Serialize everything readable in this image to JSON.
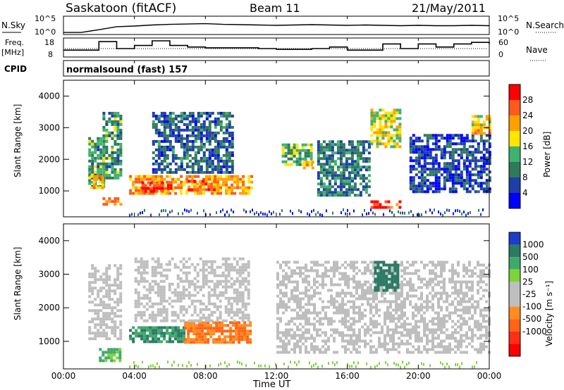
{
  "header": {
    "station": "Saskatoon (fitACF)",
    "beam": "Beam 11",
    "date": "21/May/2011"
  },
  "noise_panel": {
    "left_label": "N.Sky",
    "left_ticks": [
      "10^5",
      "10^0"
    ],
    "right_label": "N.Search",
    "right_ticks": [
      "10^5",
      "10^0"
    ]
  },
  "freq_panel": {
    "left_label_line1": "Freq.",
    "left_label_line2": "[MHz]",
    "left_ticks": [
      "18",
      "8"
    ],
    "right_label": "Nave",
    "right_ticks": [
      "60",
      "0"
    ]
  },
  "cpid": {
    "label": "CPID",
    "value": "normalsound (fast) 157"
  },
  "colors": {
    "power_scale": [
      "#0000ff",
      "#1f3fa8",
      "#2f7a5a",
      "#3fb26f",
      "#ffe500",
      "#ffa000",
      "#ff5a1e",
      "#ff0000"
    ],
    "velocity_scale": [
      "#1e3cc8",
      "#2a7a64",
      "#3fa96a",
      "#7cd43a",
      "#bfbfbf",
      "#bfbfbf",
      "#ff8c1e",
      "#ff6414",
      "#ff2e14",
      "#ff0000"
    ],
    "ground_scatter": "#bebebe"
  },
  "chart_data": [
    {
      "type": "heatmap",
      "name": "power",
      "ylabel": "Slant Range [km]",
      "yticks": [
        "1000",
        "2000",
        "3000",
        "4000"
      ],
      "ylim": [
        180,
        4500
      ],
      "xlim": [
        0,
        24
      ],
      "colorbar": {
        "label": "Power [dB]",
        "ticks": [
          "4",
          "8",
          "12",
          "16",
          "20",
          "24",
          "28"
        ],
        "range": [
          0,
          32
        ]
      },
      "regions": [
        {
          "t0": 1.4,
          "t1": 2.3,
          "r0": 1100,
          "r1": 2700,
          "value": 12
        },
        {
          "t0": 1.5,
          "t1": 2.2,
          "r0": 1100,
          "r1": 1500,
          "value": 20
        },
        {
          "t0": 2.2,
          "t1": 3.2,
          "r0": 550,
          "r1": 800,
          "value": 24
        },
        {
          "t0": 2.2,
          "t1": 3.2,
          "r0": 1400,
          "r1": 3500,
          "value": 12
        },
        {
          "t0": 3.7,
          "t1": 10.6,
          "r0": 900,
          "r1": 1500,
          "value": 22
        },
        {
          "t0": 4.4,
          "t1": 6.2,
          "r0": 1000,
          "r1": 1300,
          "value": 28
        },
        {
          "t0": 7.0,
          "t1": 8.5,
          "r0": 1000,
          "r1": 1350,
          "value": 26
        },
        {
          "t0": 5.0,
          "t1": 9.5,
          "r0": 1600,
          "r1": 3500,
          "value": 8
        },
        {
          "t0": 12.3,
          "t1": 14.0,
          "r0": 1800,
          "r1": 2500,
          "value": 14
        },
        {
          "t0": 13.5,
          "t1": 14.0,
          "r0": 1700,
          "r1": 1950,
          "value": 20
        },
        {
          "t0": 14.3,
          "t1": 17.3,
          "r0": 900,
          "r1": 2600,
          "value": 10
        },
        {
          "t0": 17.3,
          "t1": 18.9,
          "r0": 2400,
          "r1": 3600,
          "value": 18
        },
        {
          "t0": 17.3,
          "t1": 19.0,
          "r0": 450,
          "r1": 700,
          "value": 28
        },
        {
          "t0": 19.5,
          "t1": 24.0,
          "r0": 1000,
          "r1": 2800,
          "value": 6
        },
        {
          "t0": 23.0,
          "t1": 24.0,
          "r0": 2800,
          "r1": 3400,
          "value": 20
        }
      ]
    },
    {
      "type": "heatmap",
      "name": "velocity",
      "ylabel": "Slant Range [km]",
      "yticks": [
        "1000",
        "2000",
        "3000",
        "4000"
      ],
      "ylim": [
        180,
        4500
      ],
      "xlim": [
        0,
        24
      ],
      "xlabel": "Time UT",
      "xticks": [
        "00:00",
        "04:00",
        "08:00",
        "12:00",
        "16:00",
        "20:00",
        "00:00"
      ],
      "colorbar": {
        "label": "Velocity [m s⁻¹]",
        "ticks": [
          "1000",
          "500",
          "100",
          "25",
          "-25",
          "-100",
          "-500",
          "-1000"
        ]
      },
      "regions": [
        {
          "t0": 1.4,
          "t1": 3.2,
          "r0": 1100,
          "r1": 3300,
          "value": 0
        },
        {
          "t0": 2.0,
          "t1": 3.2,
          "r0": 450,
          "r1": 800,
          "value": 150
        },
        {
          "t0": 3.7,
          "t1": 6.8,
          "r0": 1000,
          "r1": 1450,
          "value": 300
        },
        {
          "t0": 6.8,
          "t1": 10.6,
          "r0": 1000,
          "r1": 1600,
          "value": -300
        },
        {
          "t0": 4.0,
          "t1": 10.5,
          "r0": 1600,
          "r1": 3500,
          "value": 0
        },
        {
          "t0": 12.0,
          "t1": 24.0,
          "r0": 700,
          "r1": 3400,
          "value": 0
        },
        {
          "t0": 17.5,
          "t1": 18.8,
          "r0": 2500,
          "r1": 3400,
          "value": 600
        }
      ]
    }
  ],
  "noise_series": {
    "xlim": [
      0,
      24
    ],
    "sky_log": [
      0.4,
      0.4,
      1.2,
      2.1,
      2.3,
      2.6,
      2.8,
      2.9,
      3.0,
      2.8,
      2.7,
      2.6,
      2.5,
      2.6,
      2.7,
      2.6,
      2.5,
      2.6,
      2.5,
      2.4,
      2.5,
      2.4,
      2.4,
      2.5,
      2.4
    ],
    "freq_mhz": [
      12,
      12,
      17.5,
      13,
      15,
      18,
      15,
      14,
      13.5,
      13.5,
      13.5,
      13,
      12.5,
      12.5,
      13,
      14,
      12,
      12,
      16,
      13,
      16,
      14,
      16,
      17,
      16
    ]
  }
}
